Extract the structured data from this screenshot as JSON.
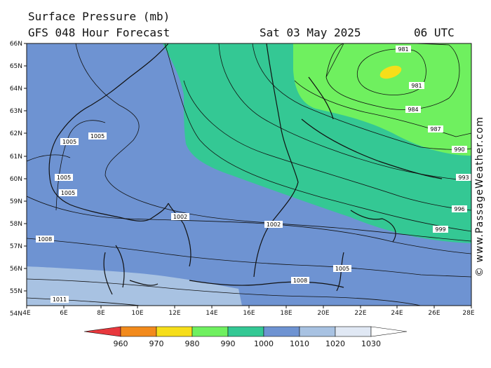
{
  "header": {
    "title": "Surface Pressure (mb)",
    "model": "GFS 048 Hour Forecast",
    "date": "Sat 03 May 2025",
    "time": "06 UTC"
  },
  "watermark": "© www.PassageWeather.com",
  "axes": {
    "lat_labels": [
      "66N",
      "65N",
      "64N",
      "63N",
      "62N",
      "61N",
      "60N",
      "59N",
      "58N",
      "57N",
      "56N",
      "55N",
      "54N"
    ],
    "lon_labels": [
      "4E",
      "6E",
      "8E",
      "10E",
      "12E",
      "14E",
      "16E",
      "18E",
      "20E",
      "22E",
      "24E",
      "26E",
      "28E"
    ]
  },
  "isobars": {
    "labels": [
      "981",
      "981",
      "984",
      "987",
      "990",
      "993",
      "996",
      "999",
      "1002",
      "1002",
      "1005",
      "1005",
      "1005",
      "1005",
      "1005",
      "1008",
      "1008",
      "1011"
    ]
  },
  "colorbar": {
    "ticks": [
      "960",
      "970",
      "980",
      "990",
      "1000",
      "1010",
      "1020",
      "1030"
    ],
    "colors": [
      "#e8383d",
      "#f28a1c",
      "#f6de1a",
      "#6ff05f",
      "#34c894",
      "#6e93d2",
      "#a8c2e2",
      "#e0e8f4"
    ]
  },
  "colors": {
    "band_990_1000": "#34c894",
    "band_980_990": "#6ff05f",
    "band_1000_1010": "#6e93d2",
    "band_1010_1020": "#a8c2e2",
    "low_core": "#f6de1a"
  }
}
